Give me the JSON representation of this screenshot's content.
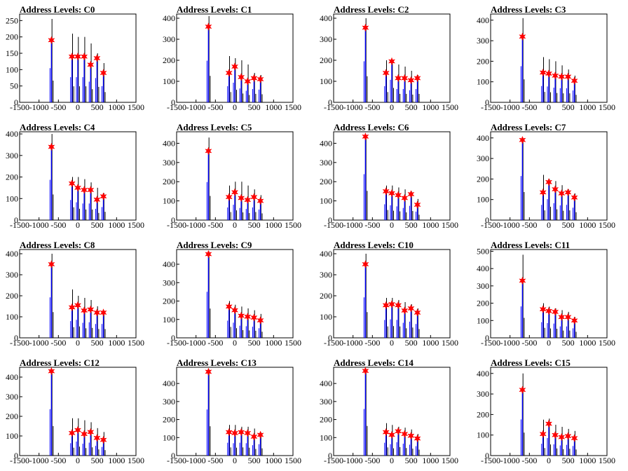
{
  "chart_data": {
    "type": "bar",
    "panel_count": 16,
    "xlim": [
      -1500,
      1500
    ],
    "xticks": [
      -1500,
      -1000,
      -500,
      0,
      500,
      1000,
      1500
    ],
    "colors": {
      "histogram": "#0000ff",
      "overflow": "#000000",
      "marker": "#ff0000"
    },
    "panels": [
      {
        "title": "Address Levels: C0",
        "ylim": [
          0,
          270
        ],
        "yticks": [
          0,
          50,
          100,
          150,
          200,
          250
        ],
        "peaks": [
          {
            "x": -680,
            "y": 255,
            "marker": 190
          },
          {
            "x": -150,
            "y": 210,
            "marker": 140
          },
          {
            "x": 0,
            "y": 200,
            "marker": 140
          },
          {
            "x": 165,
            "y": 200,
            "marker": 140
          },
          {
            "x": 330,
            "y": 180,
            "marker": 115
          },
          {
            "x": 495,
            "y": 150,
            "marker": 135
          },
          {
            "x": 660,
            "y": 120,
            "marker": 90
          }
        ]
      },
      {
        "title": "Address Levels: C1",
        "ylim": [
          0,
          420
        ],
        "yticks": [
          0,
          100,
          200,
          300,
          400
        ],
        "peaks": [
          {
            "x": -680,
            "y": 410,
            "marker": 360
          },
          {
            "x": -150,
            "y": 220,
            "marker": 140
          },
          {
            "x": 0,
            "y": 210,
            "marker": 170
          },
          {
            "x": 165,
            "y": 200,
            "marker": 120
          },
          {
            "x": 330,
            "y": 180,
            "marker": 100
          },
          {
            "x": 495,
            "y": 140,
            "marker": 115
          },
          {
            "x": 660,
            "y": 130,
            "marker": 110
          }
        ]
      },
      {
        "title": "Address Levels: C2",
        "ylim": [
          0,
          420
        ],
        "yticks": [
          0,
          100,
          200,
          300,
          400
        ],
        "peaks": [
          {
            "x": -680,
            "y": 400,
            "marker": 355
          },
          {
            "x": -150,
            "y": 200,
            "marker": 140
          },
          {
            "x": 0,
            "y": 195,
            "marker": 195
          },
          {
            "x": 165,
            "y": 180,
            "marker": 115
          },
          {
            "x": 330,
            "y": 170,
            "marker": 115
          },
          {
            "x": 495,
            "y": 150,
            "marker": 105
          },
          {
            "x": 660,
            "y": 130,
            "marker": 115
          }
        ]
      },
      {
        "title": "Address Levels: C3",
        "ylim": [
          0,
          430
        ],
        "yticks": [
          0,
          100,
          200,
          300,
          400
        ],
        "peaks": [
          {
            "x": -680,
            "y": 410,
            "marker": 320
          },
          {
            "x": -150,
            "y": 220,
            "marker": 145
          },
          {
            "x": 0,
            "y": 210,
            "marker": 140
          },
          {
            "x": 165,
            "y": 200,
            "marker": 130
          },
          {
            "x": 330,
            "y": 180,
            "marker": 125
          },
          {
            "x": 495,
            "y": 160,
            "marker": 125
          },
          {
            "x": 660,
            "y": 130,
            "marker": 105
          }
        ]
      },
      {
        "title": "Address Levels: C4",
        "ylim": [
          0,
          410
        ],
        "yticks": [
          0,
          100,
          200,
          300,
          400
        ],
        "peaks": [
          {
            "x": -680,
            "y": 400,
            "marker": 340
          },
          {
            "x": -150,
            "y": 200,
            "marker": 170
          },
          {
            "x": 0,
            "y": 200,
            "marker": 150
          },
          {
            "x": 165,
            "y": 190,
            "marker": 140
          },
          {
            "x": 330,
            "y": 175,
            "marker": 140
          },
          {
            "x": 495,
            "y": 150,
            "marker": 95
          },
          {
            "x": 660,
            "y": 125,
            "marker": 110
          }
        ]
      },
      {
        "title": "Address Levels: C5",
        "ylim": [
          0,
          460
        ],
        "yticks": [
          0,
          100,
          200,
          300,
          400
        ],
        "peaks": [
          {
            "x": -680,
            "y": 430,
            "marker": 360
          },
          {
            "x": -150,
            "y": 180,
            "marker": 120
          },
          {
            "x": 0,
            "y": 200,
            "marker": 145
          },
          {
            "x": 165,
            "y": 200,
            "marker": 115
          },
          {
            "x": 330,
            "y": 180,
            "marker": 105
          },
          {
            "x": 495,
            "y": 160,
            "marker": 120
          },
          {
            "x": 660,
            "y": 130,
            "marker": 100
          }
        ]
      },
      {
        "title": "Address Levels: C6",
        "ylim": [
          0,
          460
        ],
        "yticks": [
          0,
          100,
          200,
          300,
          400
        ],
        "peaks": [
          {
            "x": -680,
            "y": 440,
            "marker": 435
          },
          {
            "x": -150,
            "y": 180,
            "marker": 150
          },
          {
            "x": 0,
            "y": 180,
            "marker": 140
          },
          {
            "x": 165,
            "y": 170,
            "marker": 130
          },
          {
            "x": 330,
            "y": 160,
            "marker": 115
          },
          {
            "x": 495,
            "y": 150,
            "marker": 135
          },
          {
            "x": 660,
            "y": 110,
            "marker": 80
          }
        ]
      },
      {
        "title": "Address Levels: C7",
        "ylim": [
          0,
          430
        ],
        "yticks": [
          0,
          100,
          200,
          300,
          400
        ],
        "peaks": [
          {
            "x": -680,
            "y": 400,
            "marker": 390
          },
          {
            "x": -150,
            "y": 220,
            "marker": 135
          },
          {
            "x": 0,
            "y": 200,
            "marker": 185
          },
          {
            "x": 165,
            "y": 190,
            "marker": 150
          },
          {
            "x": 330,
            "y": 170,
            "marker": 130
          },
          {
            "x": 495,
            "y": 150,
            "marker": 135
          },
          {
            "x": 660,
            "y": 130,
            "marker": 110
          }
        ]
      },
      {
        "title": "Address Levels: C8",
        "ylim": [
          0,
          420
        ],
        "yticks": [
          0,
          100,
          200,
          300,
          400
        ],
        "peaks": [
          {
            "x": -680,
            "y": 400,
            "marker": 350
          },
          {
            "x": -150,
            "y": 230,
            "marker": 145
          },
          {
            "x": 0,
            "y": 200,
            "marker": 155
          },
          {
            "x": 165,
            "y": 190,
            "marker": 130
          },
          {
            "x": 330,
            "y": 180,
            "marker": 135
          },
          {
            "x": 495,
            "y": 150,
            "marker": 120
          },
          {
            "x": 660,
            "y": 130,
            "marker": 120
          }
        ]
      },
      {
        "title": "Address Levels: C9",
        "ylim": [
          0,
          480
        ],
        "yticks": [
          0,
          100,
          200,
          300,
          400
        ],
        "peaks": [
          {
            "x": -680,
            "y": 470,
            "marker": 455
          },
          {
            "x": -150,
            "y": 200,
            "marker": 170
          },
          {
            "x": 0,
            "y": 180,
            "marker": 150
          },
          {
            "x": 165,
            "y": 170,
            "marker": 120
          },
          {
            "x": 330,
            "y": 160,
            "marker": 115
          },
          {
            "x": 495,
            "y": 150,
            "marker": 110
          },
          {
            "x": 660,
            "y": 130,
            "marker": 95
          }
        ]
      },
      {
        "title": "Address Levels: C10",
        "ylim": [
          0,
          420
        ],
        "yticks": [
          0,
          100,
          200,
          300,
          400
        ],
        "peaks": [
          {
            "x": -680,
            "y": 400,
            "marker": 350
          },
          {
            "x": -150,
            "y": 190,
            "marker": 155
          },
          {
            "x": 0,
            "y": 190,
            "marker": 160
          },
          {
            "x": 165,
            "y": 180,
            "marker": 155
          },
          {
            "x": 330,
            "y": 170,
            "marker": 130
          },
          {
            "x": 495,
            "y": 160,
            "marker": 140
          },
          {
            "x": 660,
            "y": 140,
            "marker": 120
          }
        ]
      },
      {
        "title": "Address Levels: C11",
        "ylim": [
          0,
          510
        ],
        "yticks": [
          0,
          100,
          200,
          300,
          400,
          500
        ],
        "peaks": [
          {
            "x": -680,
            "y": 480,
            "marker": 330
          },
          {
            "x": -150,
            "y": 200,
            "marker": 165
          },
          {
            "x": 0,
            "y": 180,
            "marker": 155
          },
          {
            "x": 165,
            "y": 170,
            "marker": 150
          },
          {
            "x": 330,
            "y": 160,
            "marker": 120
          },
          {
            "x": 495,
            "y": 150,
            "marker": 120
          },
          {
            "x": 660,
            "y": 120,
            "marker": 100
          }
        ]
      },
      {
        "title": "Address Levels: C12",
        "ylim": [
          0,
          450
        ],
        "yticks": [
          0,
          100,
          200,
          300,
          400
        ],
        "peaks": [
          {
            "x": -680,
            "y": 440,
            "marker": 430
          },
          {
            "x": -150,
            "y": 190,
            "marker": 115
          },
          {
            "x": 0,
            "y": 190,
            "marker": 130
          },
          {
            "x": 165,
            "y": 180,
            "marker": 110
          },
          {
            "x": 330,
            "y": 170,
            "marker": 120
          },
          {
            "x": 495,
            "y": 140,
            "marker": 90
          },
          {
            "x": 660,
            "y": 120,
            "marker": 80
          }
        ]
      },
      {
        "title": "Address Levels: C13",
        "ylim": [
          0,
          490
        ],
        "yticks": [
          0,
          100,
          200,
          300,
          400
        ],
        "peaks": [
          {
            "x": -680,
            "y": 480,
            "marker": 465
          },
          {
            "x": -150,
            "y": 170,
            "marker": 130
          },
          {
            "x": 0,
            "y": 170,
            "marker": 125
          },
          {
            "x": 165,
            "y": 160,
            "marker": 130
          },
          {
            "x": 330,
            "y": 160,
            "marker": 125
          },
          {
            "x": 495,
            "y": 150,
            "marker": 105
          },
          {
            "x": 660,
            "y": 130,
            "marker": 115
          }
        ]
      },
      {
        "title": "Address Levels: C14",
        "ylim": [
          0,
          490
        ],
        "yticks": [
          0,
          100,
          200,
          300,
          400
        ],
        "peaks": [
          {
            "x": -680,
            "y": 480,
            "marker": 470
          },
          {
            "x": -150,
            "y": 180,
            "marker": 130
          },
          {
            "x": 0,
            "y": 170,
            "marker": 115
          },
          {
            "x": 165,
            "y": 160,
            "marker": 135
          },
          {
            "x": 330,
            "y": 155,
            "marker": 120
          },
          {
            "x": 495,
            "y": 145,
            "marker": 110
          },
          {
            "x": 660,
            "y": 120,
            "marker": 95
          }
        ]
      },
      {
        "title": "Address Levels: C15",
        "ylim": [
          0,
          430
        ],
        "yticks": [
          0,
          100,
          200,
          300,
          400
        ],
        "peaks": [
          {
            "x": -680,
            "y": 400,
            "marker": 320
          },
          {
            "x": -150,
            "y": 175,
            "marker": 105
          },
          {
            "x": 0,
            "y": 180,
            "marker": 155
          },
          {
            "x": 165,
            "y": 150,
            "marker": 100
          },
          {
            "x": 330,
            "y": 140,
            "marker": 90
          },
          {
            "x": 495,
            "y": 130,
            "marker": 95
          },
          {
            "x": 660,
            "y": 120,
            "marker": 85
          }
        ]
      }
    ]
  }
}
